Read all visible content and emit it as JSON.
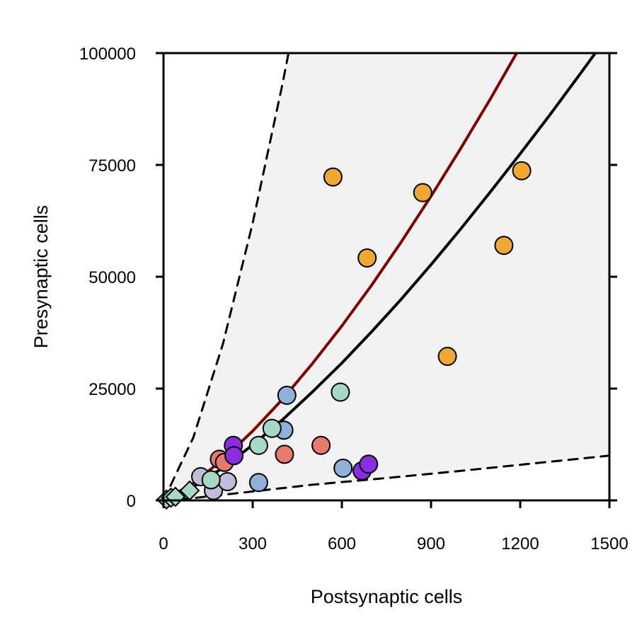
{
  "chart_data": {
    "type": "scatter",
    "title": "",
    "xlabel": "Postsynaptic cells",
    "ylabel": "Presynaptic cells",
    "xlim": [
      0,
      1500
    ],
    "ylim": [
      0,
      100000
    ],
    "x_ticks": [
      0,
      300,
      600,
      900,
      1200,
      1500
    ],
    "y_ticks": [
      0,
      25000,
      50000,
      75000,
      100000
    ],
    "x_tick_labels": [
      "0",
      "300",
      "600",
      "900",
      "1200",
      "1500"
    ],
    "y_tick_labels": [
      "0",
      "25000",
      "50000",
      "75000",
      "100000"
    ],
    "shaded_region": {
      "color": "#f2f2f2",
      "bounds": "between dashed lines"
    },
    "series": [
      {
        "name": "orange",
        "marker": "circle",
        "color": "#f0a830",
        "points": [
          [
            570,
            72300
          ],
          [
            685,
            54200
          ],
          [
            872,
            68800
          ],
          [
            955,
            32200
          ],
          [
            1145,
            57000
          ],
          [
            1205,
            73700
          ]
        ]
      },
      {
        "name": "red",
        "marker": "circle",
        "color": "#e8796e",
        "points": [
          [
            188,
            9200
          ],
          [
            205,
            8500
          ],
          [
            407,
            10300
          ],
          [
            530,
            12300
          ]
        ]
      },
      {
        "name": "purple",
        "marker": "circle",
        "color": "#8b2be2",
        "points": [
          [
            235,
            12300
          ],
          [
            237,
            10000
          ],
          [
            668,
            6600
          ],
          [
            690,
            8100
          ]
        ]
      },
      {
        "name": "blue",
        "marker": "circle",
        "color": "#8fb0d8",
        "points": [
          [
            320,
            4000
          ],
          [
            405,
            15700
          ],
          [
            415,
            23500
          ],
          [
            604,
            7200
          ]
        ]
      },
      {
        "name": "lavender",
        "marker": "circle",
        "color": "#c0bcda",
        "points": [
          [
            125,
            5300
          ],
          [
            168,
            2200
          ],
          [
            215,
            4200
          ]
        ]
      },
      {
        "name": "teal",
        "marker": "circle",
        "color": "#a6d8c8",
        "points": [
          [
            160,
            4600
          ],
          [
            320,
            12300
          ],
          [
            365,
            16100
          ],
          [
            595,
            24200
          ]
        ]
      },
      {
        "name": "teal-diamond",
        "marker": "diamond",
        "color": "#a6d8c8",
        "points": [
          [
            10,
            200
          ],
          [
            25,
            600
          ],
          [
            40,
            800
          ],
          [
            88,
            2200
          ]
        ]
      }
    ],
    "curves": [
      {
        "name": "black-fit",
        "style": "solid",
        "color": "#000000",
        "points": [
          [
            0,
            0
          ],
          [
            100,
            3000
          ],
          [
            200,
            7300
          ],
          [
            300,
            12400
          ],
          [
            400,
            18000
          ],
          [
            500,
            24200
          ],
          [
            600,
            30700
          ],
          [
            700,
            37700
          ],
          [
            800,
            45000
          ],
          [
            900,
            52700
          ],
          [
            1000,
            60700
          ],
          [
            1100,
            69000
          ],
          [
            1200,
            77500
          ],
          [
            1300,
            86200
          ],
          [
            1400,
            95200
          ],
          [
            1500,
            104300
          ]
        ]
      },
      {
        "name": "red-fit",
        "style": "solid",
        "color": "#800000",
        "points": [
          [
            0,
            0
          ],
          [
            100,
            3800
          ],
          [
            200,
            9200
          ],
          [
            300,
            15500
          ],
          [
            400,
            22600
          ],
          [
            500,
            30500
          ],
          [
            600,
            39000
          ],
          [
            700,
            48100
          ],
          [
            800,
            57800
          ],
          [
            900,
            68000
          ],
          [
            1000,
            78700
          ],
          [
            1100,
            89800
          ],
          [
            1200,
            101400
          ]
        ]
      },
      {
        "name": "upper-bound",
        "style": "dashed",
        "color": "#000000",
        "points": [
          [
            0,
            0
          ],
          [
            100,
            14000
          ],
          [
            200,
            35000
          ],
          [
            300,
            62000
          ],
          [
            400,
            93000
          ],
          [
            450,
            110000
          ]
        ]
      },
      {
        "name": "lower-bound",
        "style": "dashed",
        "color": "#000000",
        "points": [
          [
            0,
            0
          ],
          [
            100,
            500
          ],
          [
            300,
            2000
          ],
          [
            500,
            3500
          ],
          [
            750,
            5000
          ],
          [
            1000,
            6600
          ],
          [
            1250,
            8300
          ],
          [
            1500,
            10000
          ]
        ]
      }
    ]
  }
}
